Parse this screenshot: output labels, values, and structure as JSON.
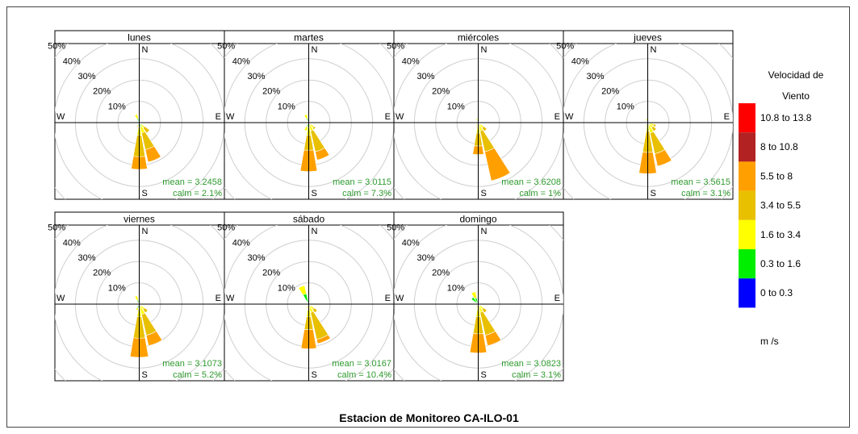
{
  "title": "Estacion de Monitoreo CA-ILO-01",
  "chart_data": {
    "type": "windrose",
    "directions": [
      "N",
      "NNE",
      "NE",
      "ENE",
      "E",
      "ESE",
      "SE",
      "SSE",
      "S",
      "SSW",
      "SW",
      "WSW",
      "W",
      "WNW",
      "NW",
      "NNW"
    ],
    "compass_labels": {
      "n": "N",
      "e": "E",
      "s": "S",
      "w": "W"
    },
    "radial_ticks": [
      10,
      20,
      30,
      40,
      50
    ],
    "radial_tick_labels": [
      "10%",
      "20%",
      "30%",
      "40%",
      "50%"
    ],
    "rmax": 50,
    "speed_bins": [
      "0 to 0.3",
      "0.3 to 1.6",
      "1.6 to 3.4",
      "3.4 to 5.5",
      "5.5 to 8",
      "8 to 10.8",
      "10.8 to 13.8"
    ],
    "colors": [
      "#0000ff",
      "#00ee00",
      "#ffff00",
      "#e8c000",
      "#ffa000",
      "#b22222",
      "#ff0000"
    ],
    "legend": {
      "title_line1": "Velocidad de",
      "title_line2": "Viento",
      "units": "m /s"
    },
    "panels": [
      {
        "name": "lunes",
        "mean": "mean = 3.2458",
        "calm": "calm = 2.1%",
        "petals": {
          "NNW": [
            0,
            2,
            2,
            0,
            0
          ],
          "N": [
            0,
            1,
            0,
            0,
            0
          ],
          "SE": [
            0,
            1,
            2,
            3,
            0
          ],
          "SSE": [
            0,
            2,
            3,
            8,
            6
          ],
          "S": [
            0,
            2,
            4,
            10,
            6
          ],
          "SSW": [
            0,
            1,
            1,
            0,
            0
          ],
          "WNW": [
            0,
            1,
            0,
            0,
            0
          ]
        }
      },
      {
        "name": "martes",
        "mean": "mean = 3.0115",
        "calm": "calm = 7.3%",
        "petals": {
          "NNW": [
            0,
            2,
            2,
            0,
            0
          ],
          "N": [
            0,
            1,
            0,
            0,
            0
          ],
          "SE": [
            0,
            1,
            2,
            1,
            0
          ],
          "SSE": [
            0,
            1,
            3,
            10,
            4
          ],
          "S": [
            0,
            2,
            4,
            7,
            10
          ],
          "SSW": [
            0,
            2,
            2,
            0,
            0
          ],
          "W": [
            0,
            1,
            0,
            0,
            0
          ]
        }
      },
      {
        "name": "miércoles",
        "mean": "mean = 3.6208",
        "calm": "calm = 1%",
        "petals": {
          "NNW": [
            0,
            1,
            1,
            0,
            0
          ],
          "N": [
            0,
            1,
            0,
            0,
            0
          ],
          "SE": [
            0,
            1,
            2,
            2,
            0
          ],
          "SSE": [
            0,
            1,
            3,
            10,
            14
          ],
          "S": [
            0,
            2,
            3,
            6,
            4
          ],
          "SSW": [
            0,
            1,
            1,
            0,
            0
          ]
        }
      },
      {
        "name": "jueves",
        "mean": "mean = 3.5615",
        "calm": "calm = 3.1%",
        "petals": {
          "NNW": [
            0,
            1,
            1,
            0,
            0
          ],
          "N": [
            0,
            1,
            0,
            0,
            0
          ],
          "ESE": [
            0,
            1,
            2,
            1,
            0
          ],
          "SE": [
            0,
            1,
            2,
            2,
            0
          ],
          "SSE": [
            0,
            1,
            4,
            10,
            6
          ],
          "S": [
            0,
            1,
            3,
            10,
            10
          ],
          "SSW": [
            0,
            1,
            1,
            0,
            0
          ]
        }
      },
      {
        "name": "viernes",
        "mean": "mean = 3.1073",
        "calm": "calm = 5.2%",
        "petals": {
          "NNW": [
            0,
            2,
            2,
            0,
            0
          ],
          "N": [
            0,
            1,
            0,
            0,
            0
          ],
          "SE": [
            0,
            1,
            2,
            2,
            0
          ],
          "SSE": [
            0,
            1,
            4,
            10,
            5
          ],
          "S": [
            0,
            2,
            4,
            10,
            9
          ],
          "SSW": [
            0,
            2,
            1,
            0,
            0
          ]
        }
      },
      {
        "name": "sábado",
        "mean": "mean = 3.0167",
        "calm": "calm = 10.4%",
        "petals": {
          "NNW": [
            0,
            5,
            4,
            0,
            0
          ],
          "N": [
            0,
            1,
            0,
            0,
            0
          ],
          "SE": [
            0,
            1,
            2,
            2,
            0
          ],
          "SSE": [
            0,
            1,
            3,
            13,
            2
          ],
          "S": [
            0,
            2,
            4,
            6,
            9
          ],
          "SSW": [
            0,
            1,
            1,
            0,
            0
          ]
        }
      },
      {
        "name": "domingo",
        "mean": "mean = 3.0823",
        "calm": "calm = 3.1%",
        "petals": {
          "NW": [
            0,
            4,
            0,
            0,
            0
          ],
          "NNW": [
            0,
            3,
            3,
            0,
            0
          ],
          "N": [
            0,
            1,
            0,
            0,
            0
          ],
          "SE": [
            0,
            1,
            2,
            2,
            0
          ],
          "SSE": [
            0,
            1,
            3,
            11,
            5
          ],
          "S": [
            0,
            2,
            4,
            8,
            9
          ],
          "SSW": [
            0,
            1,
            1,
            0,
            0
          ]
        }
      }
    ]
  }
}
